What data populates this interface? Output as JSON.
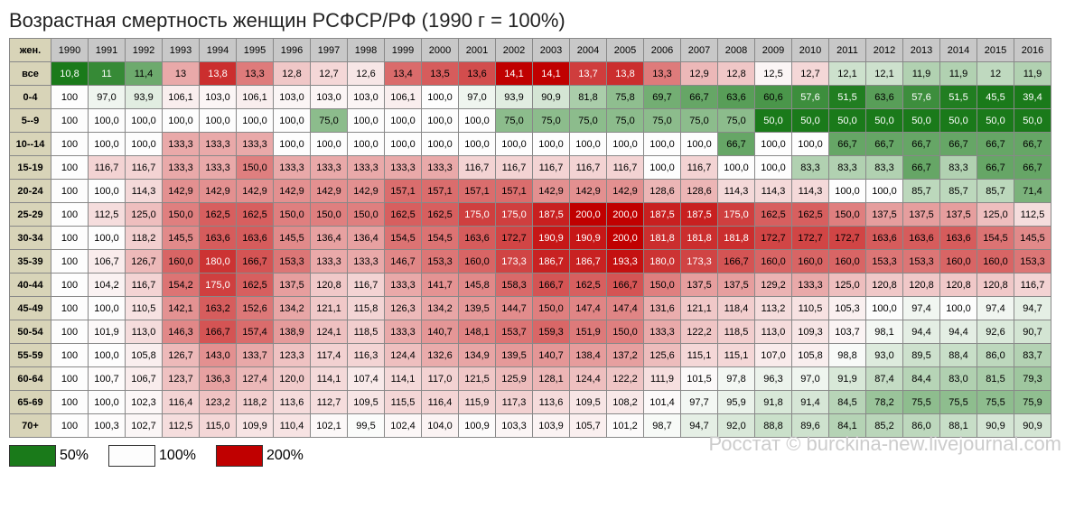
{
  "title": "Возрастная смертность женщин РСФСР/РФ (1990 г = 100%)",
  "corner": "жен.",
  "years": [
    "1990",
    "1991",
    "1992",
    "1993",
    "1994",
    "1995",
    "1996",
    "1997",
    "1998",
    "1999",
    "2000",
    "2001",
    "2002",
    "2003",
    "2004",
    "2005",
    "2006",
    "2007",
    "2008",
    "2009",
    "2010",
    "2011",
    "2012",
    "2013",
    "2014",
    "2015",
    "2016"
  ],
  "row_labels": [
    "все",
    "0-4",
    "5--9",
    "10--14",
    "15-19",
    "20-24",
    "25-29",
    "30-34",
    "35-39",
    "40-44",
    "45-49",
    "50-54",
    "55-59",
    "60-64",
    "65-69",
    "70+"
  ],
  "rows": [
    [
      "10,8",
      "11",
      "11,4",
      "13",
      "13,8",
      "13,3",
      "12,8",
      "12,7",
      "12,6",
      "13,4",
      "13,5",
      "13,6",
      "14,1",
      "14,1",
      "13,7",
      "13,8",
      "13,3",
      "12,9",
      "12,8",
      "12,5",
      "12,7",
      "12,1",
      "12,1",
      "11,9",
      "11,9",
      "12",
      "11,9"
    ],
    [
      "100",
      "97,0",
      "93,9",
      "106,1",
      "103,0",
      "106,1",
      "103,0",
      "103,0",
      "103,0",
      "106,1",
      "100,0",
      "97,0",
      "93,9",
      "90,9",
      "81,8",
      "75,8",
      "69,7",
      "66,7",
      "63,6",
      "60,6",
      "57,6",
      "51,5",
      "63,6",
      "57,6",
      "51,5",
      "45,5",
      "39,4"
    ],
    [
      "100",
      "100,0",
      "100,0",
      "100,0",
      "100,0",
      "100,0",
      "100,0",
      "75,0",
      "100,0",
      "100,0",
      "100,0",
      "100,0",
      "75,0",
      "75,0",
      "75,0",
      "75,0",
      "75,0",
      "75,0",
      "75,0",
      "50,0",
      "50,0",
      "50,0",
      "50,0",
      "50,0",
      "50,0",
      "50,0",
      "50,0"
    ],
    [
      "100",
      "100,0",
      "100,0",
      "133,3",
      "133,3",
      "133,3",
      "100,0",
      "100,0",
      "100,0",
      "100,0",
      "100,0",
      "100,0",
      "100,0",
      "100,0",
      "100,0",
      "100,0",
      "100,0",
      "100,0",
      "66,7",
      "100,0",
      "100,0",
      "66,7",
      "66,7",
      "66,7",
      "66,7",
      "66,7",
      "66,7"
    ],
    [
      "100",
      "116,7",
      "116,7",
      "133,3",
      "133,3",
      "150,0",
      "133,3",
      "133,3",
      "133,3",
      "133,3",
      "133,3",
      "116,7",
      "116,7",
      "116,7",
      "116,7",
      "116,7",
      "100,0",
      "116,7",
      "100,0",
      "100,0",
      "83,3",
      "83,3",
      "83,3",
      "66,7",
      "83,3",
      "66,7",
      "66,7"
    ],
    [
      "100",
      "100,0",
      "114,3",
      "142,9",
      "142,9",
      "142,9",
      "142,9",
      "142,9",
      "142,9",
      "157,1",
      "157,1",
      "157,1",
      "157,1",
      "142,9",
      "142,9",
      "142,9",
      "128,6",
      "128,6",
      "114,3",
      "114,3",
      "114,3",
      "100,0",
      "100,0",
      "85,7",
      "85,7",
      "85,7",
      "71,4"
    ],
    [
      "100",
      "112,5",
      "125,0",
      "150,0",
      "162,5",
      "162,5",
      "150,0",
      "150,0",
      "150,0",
      "162,5",
      "162,5",
      "175,0",
      "175,0",
      "187,5",
      "200,0",
      "200,0",
      "187,5",
      "187,5",
      "175,0",
      "162,5",
      "162,5",
      "150,0",
      "137,5",
      "137,5",
      "137,5",
      "125,0",
      "112,5"
    ],
    [
      "100",
      "100,0",
      "118,2",
      "145,5",
      "163,6",
      "163,6",
      "145,5",
      "136,4",
      "136,4",
      "154,5",
      "154,5",
      "163,6",
      "172,7",
      "190,9",
      "190,9",
      "200,0",
      "181,8",
      "181,8",
      "181,8",
      "172,7",
      "172,7",
      "172,7",
      "163,6",
      "163,6",
      "163,6",
      "154,5",
      "145,5"
    ],
    [
      "100",
      "106,7",
      "126,7",
      "160,0",
      "180,0",
      "166,7",
      "153,3",
      "133,3",
      "133,3",
      "146,7",
      "153,3",
      "160,0",
      "173,3",
      "186,7",
      "186,7",
      "193,3",
      "180,0",
      "173,3",
      "166,7",
      "160,0",
      "160,0",
      "160,0",
      "153,3",
      "153,3",
      "160,0",
      "160,0",
      "153,3"
    ],
    [
      "100",
      "104,2",
      "116,7",
      "154,2",
      "175,0",
      "162,5",
      "137,5",
      "120,8",
      "116,7",
      "133,3",
      "141,7",
      "145,8",
      "158,3",
      "166,7",
      "162,5",
      "166,7",
      "150,0",
      "137,5",
      "137,5",
      "129,2",
      "133,3",
      "125,0",
      "120,8",
      "120,8",
      "120,8",
      "120,8",
      "116,7"
    ],
    [
      "100",
      "100,0",
      "110,5",
      "142,1",
      "163,2",
      "152,6",
      "134,2",
      "121,1",
      "115,8",
      "126,3",
      "134,2",
      "139,5",
      "144,7",
      "150,0",
      "147,4",
      "147,4",
      "131,6",
      "121,1",
      "118,4",
      "113,2",
      "110,5",
      "105,3",
      "100,0",
      "97,4",
      "100,0",
      "97,4",
      "94,7"
    ],
    [
      "100",
      "101,9",
      "113,0",
      "146,3",
      "166,7",
      "157,4",
      "138,9",
      "124,1",
      "118,5",
      "133,3",
      "140,7",
      "148,1",
      "153,7",
      "159,3",
      "151,9",
      "150,0",
      "133,3",
      "122,2",
      "118,5",
      "113,0",
      "109,3",
      "103,7",
      "98,1",
      "94,4",
      "94,4",
      "92,6",
      "90,7"
    ],
    [
      "100",
      "100,0",
      "105,8",
      "126,7",
      "143,0",
      "133,7",
      "123,3",
      "117,4",
      "116,3",
      "124,4",
      "132,6",
      "134,9",
      "139,5",
      "140,7",
      "138,4",
      "137,2",
      "125,6",
      "115,1",
      "115,1",
      "107,0",
      "105,8",
      "98,8",
      "93,0",
      "89,5",
      "88,4",
      "86,0",
      "83,7"
    ],
    [
      "100",
      "100,7",
      "106,7",
      "123,7",
      "136,3",
      "127,4",
      "120,0",
      "114,1",
      "107,4",
      "114,1",
      "117,0",
      "121,5",
      "125,9",
      "128,1",
      "124,4",
      "122,2",
      "111,9",
      "101,5",
      "97,8",
      "96,3",
      "97,0",
      "91,9",
      "87,4",
      "84,4",
      "83,0",
      "81,5",
      "79,3"
    ],
    [
      "100",
      "100,0",
      "102,3",
      "116,4",
      "123,2",
      "118,2",
      "113,6",
      "112,7",
      "109,5",
      "115,5",
      "116,4",
      "115,9",
      "117,3",
      "113,6",
      "109,5",
      "108,2",
      "101,4",
      "97,7",
      "95,9",
      "91,8",
      "91,4",
      "84,5",
      "78,2",
      "75,5",
      "75,5",
      "75,5",
      "75,9"
    ],
    [
      "100",
      "100,3",
      "102,7",
      "112,5",
      "115,0",
      "109,9",
      "110,4",
      "102,1",
      "99,5",
      "102,4",
      "104,0",
      "100,9",
      "103,3",
      "103,9",
      "105,7",
      "101,2",
      "98,7",
      "94,7",
      "92,0",
      "88,8",
      "89,6",
      "84,1",
      "85,2",
      "86,0",
      "88,1",
      "90,9",
      "90,9"
    ]
  ],
  "colors": {
    "min": "#1a7a1a",
    "mid": "#fdfdfd",
    "max": "#c00000",
    "total_min": "#1a7a1a",
    "total_max": "#c00000"
  },
  "legend": [
    {
      "color": "#1a7a1a",
      "label": "50%"
    },
    {
      "color": "#fdfdfd",
      "label": "100%"
    },
    {
      "color": "#c00000",
      "label": "200%"
    }
  ],
  "watermark": "Росстат © burckina-new.livejournal.com"
}
